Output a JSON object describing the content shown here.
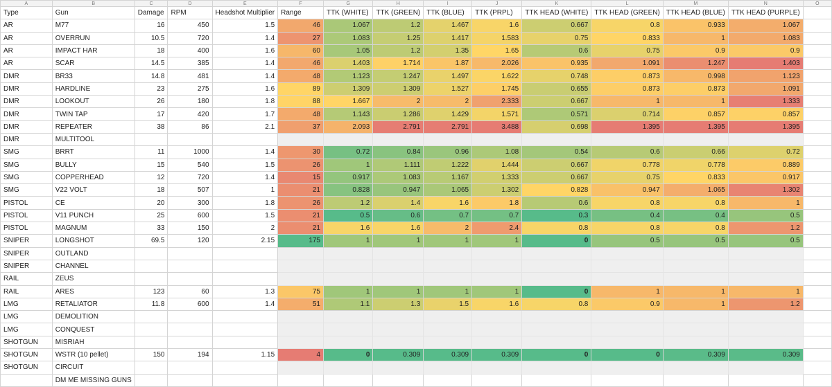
{
  "column_letters": [
    "A",
    "B",
    "C",
    "D",
    "E",
    "F",
    "G",
    "H",
    "I",
    "J",
    "K",
    "L",
    "M",
    "N",
    "O"
  ],
  "headers": [
    "Type",
    "Gun",
    "Damage",
    "RPM",
    "Headshot Multiplier",
    "Range",
    "TTK (WHITE)",
    "TTK (GREEN)",
    "TTK (BLUE)",
    "TTK (PRPL)",
    "TTK HEAD (WHITE)",
    "TTK HEAD (GREEN)",
    "TTK HEAD (BLUE)",
    "TTK HEAD (PURPLE)",
    ""
  ],
  "rows": [
    {
      "type": "AR",
      "gun": "M77",
      "damage": "16",
      "rpm": "450",
      "hs": "1.5",
      "range": "46",
      "ttk": [
        "1.067",
        "1.2",
        "1.467",
        "1.6"
      ],
      "head": [
        "0.667",
        "0.8",
        "0.933",
        "1.067"
      ]
    },
    {
      "type": "AR",
      "gun": "OVERRUN",
      "damage": "10.5",
      "rpm": "720",
      "hs": "1.4",
      "range": "27",
      "ttk": [
        "1.083",
        "1.25",
        "1.417",
        "1.583"
      ],
      "head": [
        "0.75",
        "0.833",
        "1",
        "1.083"
      ]
    },
    {
      "type": "AR",
      "gun": "IMPACT HAR",
      "damage": "18",
      "rpm": "400",
      "hs": "1.6",
      "range": "60",
      "ttk": [
        "1.05",
        "1.2",
        "1.35",
        "1.65"
      ],
      "head": [
        "0.6",
        "0.75",
        "0.9",
        "0.9"
      ]
    },
    {
      "type": "AR",
      "gun": "SCAR",
      "damage": "14.5",
      "rpm": "385",
      "hs": "1.4",
      "range": "46",
      "ttk": [
        "1.403",
        "1.714",
        "1.87",
        "2.026"
      ],
      "head": [
        "0.935",
        "1.091",
        "1.247",
        "1.403"
      ]
    },
    {
      "type": "DMR",
      "gun": "BR33",
      "damage": "14.8",
      "rpm": "481",
      "hs": "1.4",
      "range": "48",
      "ttk": [
        "1.123",
        "1.247",
        "1.497",
        "1.622"
      ],
      "head": [
        "0.748",
        "0.873",
        "0.998",
        "1.123"
      ]
    },
    {
      "type": "DMR",
      "gun": "HARDLINE",
      "damage": "23",
      "rpm": "275",
      "hs": "1.6",
      "range": "89",
      "ttk": [
        "1.309",
        "1.309",
        "1.527",
        "1.745"
      ],
      "head": [
        "0.655",
        "0.873",
        "0.873",
        "1.091"
      ]
    },
    {
      "type": "DMR",
      "gun": "LOOKOUT",
      "damage": "26",
      "rpm": "180",
      "hs": "1.8",
      "range": "88",
      "ttk": [
        "1.667",
        "2",
        "2",
        "2.333"
      ],
      "head": [
        "0.667",
        "1",
        "1",
        "1.333"
      ]
    },
    {
      "type": "DMR",
      "gun": "TWIN TAP",
      "damage": "17",
      "rpm": "420",
      "hs": "1.7",
      "range": "48",
      "ttk": [
        "1.143",
        "1.286",
        "1.429",
        "1.571"
      ],
      "head": [
        "0.571",
        "0.714",
        "0.857",
        "0.857"
      ]
    },
    {
      "type": "DMR",
      "gun": "REPEATER",
      "damage": "38",
      "rpm": "86",
      "hs": "2.1",
      "range": "37",
      "ttk": [
        "2.093",
        "2.791",
        "2.791",
        "3.488"
      ],
      "head": [
        "0.698",
        "1.395",
        "1.395",
        "1.395"
      ]
    },
    {
      "type": "DMR",
      "gun": "MULTITOOL",
      "damage": "",
      "rpm": "",
      "hs": "",
      "range": "",
      "ttk": [
        "",
        "",
        "",
        ""
      ],
      "head": [
        "",
        "",
        "",
        ""
      ]
    },
    {
      "type": "SMG",
      "gun": "BRRT",
      "damage": "11",
      "rpm": "1000",
      "hs": "1.4",
      "range": "30",
      "ttk": [
        "0.72",
        "0.84",
        "0.96",
        "1.08"
      ],
      "head": [
        "0.54",
        "0.6",
        "0.66",
        "0.72"
      ]
    },
    {
      "type": "SMG",
      "gun": "BULLY",
      "damage": "15",
      "rpm": "540",
      "hs": "1.5",
      "range": "26",
      "ttk": [
        "1",
        "1.111",
        "1.222",
        "1.444"
      ],
      "head": [
        "0.667",
        "0.778",
        "0.778",
        "0.889"
      ]
    },
    {
      "type": "SMG",
      "gun": "COPPERHEAD",
      "damage": "12",
      "rpm": "720",
      "hs": "1.4",
      "range": "15",
      "ttk": [
        "0.917",
        "1.083",
        "1.167",
        "1.333"
      ],
      "head": [
        "0.667",
        "0.75",
        "0.833",
        "0.917"
      ]
    },
    {
      "type": "SMG",
      "gun": "V22 VOLT",
      "damage": "18",
      "rpm": "507",
      "hs": "1",
      "range": "21",
      "ttk": [
        "0.828",
        "0.947",
        "1.065",
        "1.302"
      ],
      "head": [
        "0.828",
        "0.947",
        "1.065",
        "1.302"
      ]
    },
    {
      "type": "PISTOL",
      "gun": "CE",
      "damage": "20",
      "rpm": "300",
      "hs": "1.8",
      "range": "26",
      "ttk": [
        "1.2",
        "1.4",
        "1.6",
        "1.8"
      ],
      "head": [
        "0.6",
        "0.8",
        "0.8",
        "1"
      ]
    },
    {
      "type": "PISTOL",
      "gun": "V11 PUNCH",
      "damage": "25",
      "rpm": "600",
      "hs": "1.5",
      "range": "21",
      "ttk": [
        "0.5",
        "0.6",
        "0.7",
        "0.7"
      ],
      "head": [
        "0.3",
        "0.4",
        "0.4",
        "0.5"
      ]
    },
    {
      "type": "PISTOL",
      "gun": "MAGNUM",
      "damage": "33",
      "rpm": "150",
      "hs": "2",
      "range": "21",
      "ttk": [
        "1.6",
        "1.6",
        "2",
        "2.4"
      ],
      "head": [
        "0.8",
        "0.8",
        "0.8",
        "1.2"
      ]
    },
    {
      "type": "SNIPER",
      "gun": "LONGSHOT",
      "damage": "69.5",
      "rpm": "120",
      "hs": "2.15",
      "range": "175",
      "ttk": [
        "1",
        "1",
        "1",
        "1"
      ],
      "head": [
        "0",
        "0.5",
        "0.5",
        "0.5"
      ]
    },
    {
      "type": "SNIPER",
      "gun": "OUTLAND",
      "damage": "",
      "rpm": "",
      "hs": "",
      "range": "",
      "ttk": [
        "",
        "",
        "",
        ""
      ],
      "head": [
        "",
        "",
        "",
        ""
      ]
    },
    {
      "type": "SNIPER",
      "gun": "CHANNEL",
      "damage": "",
      "rpm": "",
      "hs": "",
      "range": "",
      "ttk": [
        "",
        "",
        "",
        ""
      ],
      "head": [
        "",
        "",
        "",
        ""
      ]
    },
    {
      "type": "RAIL",
      "gun": "ZEUS",
      "damage": "",
      "rpm": "",
      "hs": "",
      "range": "",
      "ttk": [
        "",
        "",
        "",
        ""
      ],
      "head": [
        "",
        "",
        "",
        ""
      ]
    },
    {
      "type": "RAIL",
      "gun": "ARES",
      "damage": "123",
      "rpm": "60",
      "hs": "1.3",
      "range": "75",
      "ttk": [
        "1",
        "1",
        "1",
        "1"
      ],
      "head": [
        "0",
        "1",
        "1",
        "1"
      ]
    },
    {
      "type": "LMG",
      "gun": "RETALIATOR",
      "damage": "11.8",
      "rpm": "600",
      "hs": "1.4",
      "range": "51",
      "ttk": [
        "1.1",
        "1.3",
        "1.5",
        "1.6"
      ],
      "head": [
        "0.8",
        "0.9",
        "1",
        "1.2"
      ]
    },
    {
      "type": "LMG",
      "gun": "DEMOLITION",
      "damage": "",
      "rpm": "",
      "hs": "",
      "range": "",
      "ttk": [
        "",
        "",
        "",
        ""
      ],
      "head": [
        "",
        "",
        "",
        ""
      ]
    },
    {
      "type": "LMG",
      "gun": "CONQUEST",
      "damage": "",
      "rpm": "",
      "hs": "",
      "range": "",
      "ttk": [
        "",
        "",
        "",
        ""
      ],
      "head": [
        "",
        "",
        "",
        ""
      ]
    },
    {
      "type": "SHOTGUN",
      "gun": "MISRIAH",
      "damage": "",
      "rpm": "",
      "hs": "",
      "range": "",
      "ttk": [
        "",
        "",
        "",
        ""
      ],
      "head": [
        "",
        "",
        "",
        ""
      ]
    },
    {
      "type": "SHOTGUN",
      "gun": "WSTR (10 pellet)",
      "damage": "150",
      "rpm": "194",
      "hs": "1.15",
      "range": "4",
      "ttk": [
        "0",
        "0.309",
        "0.309",
        "0.309"
      ],
      "head": [
        "0",
        "0",
        "0.309",
        "0.309"
      ]
    },
    {
      "type": "SHOTGUN",
      "gun": "CIRCUIT",
      "damage": "",
      "rpm": "",
      "hs": "",
      "range": "",
      "ttk": [
        "",
        "",
        "",
        ""
      ],
      "head": [
        "",
        "",
        "",
        ""
      ]
    },
    {
      "type": "",
      "gun": "DM ME MISSING GUNS",
      "damage": "",
      "rpm": "",
      "hs": "",
      "range": "",
      "ttk": [
        "",
        "",
        "",
        ""
      ],
      "head": [
        "",
        "",
        "",
        ""
      ]
    }
  ],
  "colors": {
    "scale_red": "#e67c73",
    "scale_yellow": "#ffd666",
    "scale_green": "#57bb8a",
    "blank_row": "#efefef"
  }
}
